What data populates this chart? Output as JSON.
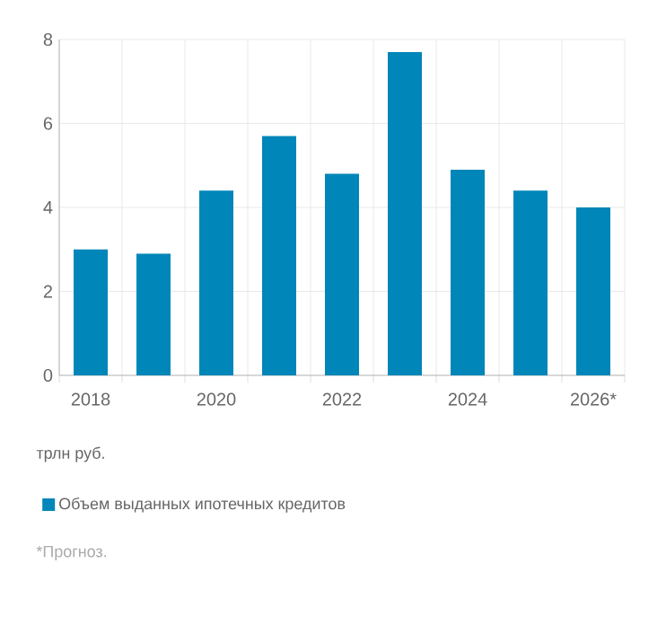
{
  "chart_data": {
    "type": "bar",
    "categories": [
      "2018",
      null,
      "2020",
      null,
      "2022",
      null,
      "2024",
      null,
      "2026*"
    ],
    "series": [
      {
        "name": "Объем выданных ипотечных кредитов",
        "color": "#0086b8",
        "values": [
          3.0,
          2.9,
          4.4,
          5.7,
          4.8,
          7.7,
          4.9,
          4.4,
          4.0
        ]
      }
    ],
    "ylim": [
      0,
      8
    ],
    "yticks": [
      0,
      2,
      4,
      6,
      8
    ],
    "grid": true,
    "legend": "bottom",
    "annotations": [
      "трлн руб.",
      "*Прогноз."
    ]
  }
}
